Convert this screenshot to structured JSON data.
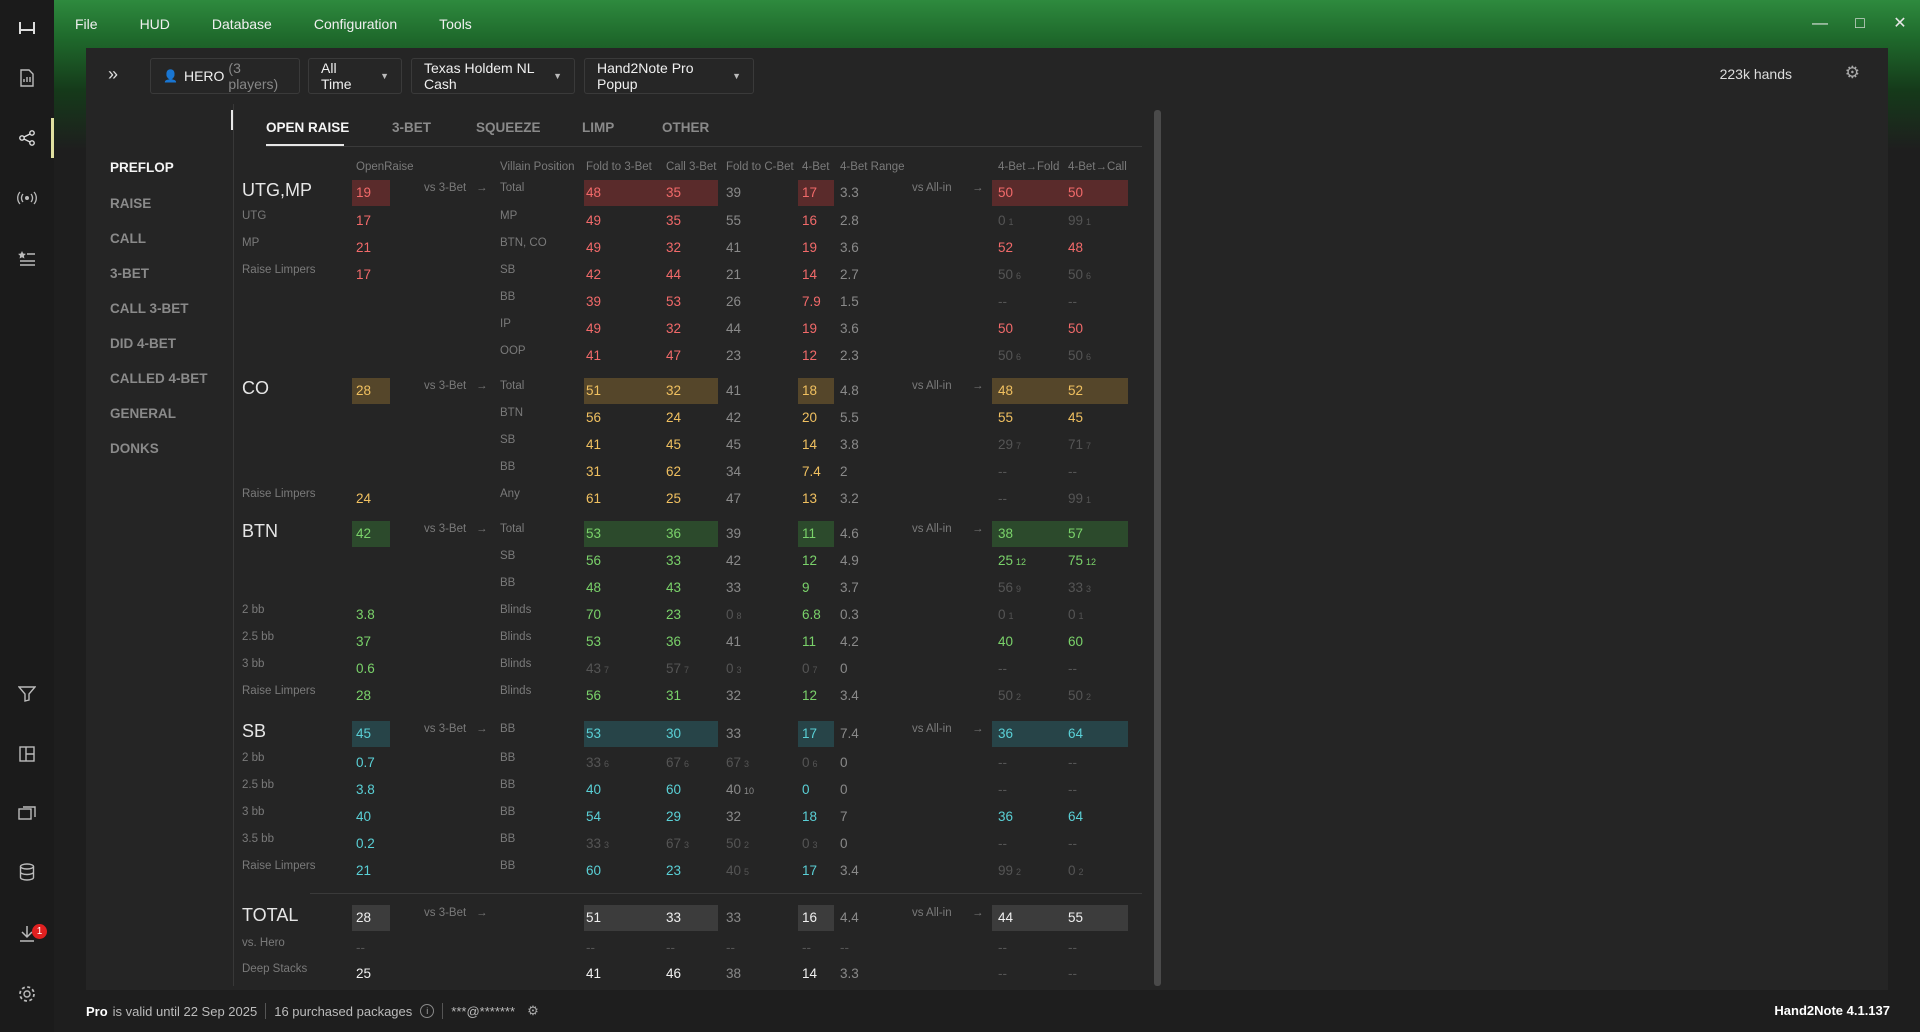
{
  "menu": [
    "File",
    "HUD",
    "Database",
    "Configuration",
    "Tools"
  ],
  "toolbar": {
    "player": "HERO",
    "player_count": "(3 players)",
    "time": "All Time",
    "game": "Texas Holdem NL Cash",
    "hud": "Hand2Note Pro Popup",
    "hands": "223k hands"
  },
  "sidenav": [
    "PREFLOP",
    "RAISE",
    "CALL",
    "3-BET",
    "CALL 3-BET",
    "DID 4-BET",
    "CALLED 4-BET",
    "GENERAL",
    "DONKS"
  ],
  "tabs": [
    "OPEN RAISE",
    "3-BET",
    "SQUEEZE",
    "LIMP",
    "OTHER"
  ],
  "headers": {
    "openraise": "OpenRaise",
    "villain": "Villain Position",
    "f3b": "Fold to 3-Bet",
    "c3b": "Call 3-Bet",
    "fcb": "Fold to C-Bet",
    "b4": "4-Bet",
    "b4r": "4-Bet Range",
    "f4f": "4-Bet→Fold",
    "f4c": "4-Bet→Call"
  },
  "rows": [
    {
      "group": "UTG,MP",
      "color": "red",
      "or": "19",
      "vs3": "vs 3-Bet",
      "arrow": "→",
      "pos": "Total",
      "f3b": "48",
      "c3b": "35",
      "fcb": "39",
      "b4": "17",
      "b4r": "3.3",
      "vsai": "vs All-in",
      "arrow2": "→",
      "ff": "50",
      "fc": "50",
      "hl": true
    },
    {
      "label": "UTG",
      "color": "red",
      "or": "17",
      "pos": "MP",
      "f3b": "49",
      "c3b": "35",
      "fcb": "55",
      "b4": "16",
      "b4r": "2.8",
      "ff": "0",
      "ff_sub": "1",
      "ff_dim": true,
      "fc": "99",
      "fc_sub": "1",
      "fc_dim": true
    },
    {
      "label": "MP",
      "color": "red",
      "or": "21",
      "pos": "BTN, CO",
      "f3b": "49",
      "c3b": "32",
      "fcb": "41",
      "b4": "19",
      "b4r": "3.6",
      "ff": "52",
      "fc": "48"
    },
    {
      "label": "Raise Limpers",
      "color": "red",
      "or": "17",
      "pos": "SB",
      "f3b": "42",
      "c3b": "44",
      "fcb": "21",
      "b4": "14",
      "b4r": "2.7",
      "ff": "50",
      "ff_sub": "6",
      "ff_dim": true,
      "fc": "50",
      "fc_sub": "6",
      "fc_dim": true
    },
    {
      "color": "red",
      "pos": "BB",
      "f3b": "39",
      "c3b": "53",
      "fcb": "26",
      "b4": "7.9",
      "b4r": "1.5",
      "ff": "--",
      "ff_dim": true,
      "fc": "--",
      "fc_dim": true
    },
    {
      "color": "red",
      "pos": "IP",
      "f3b": "49",
      "c3b": "32",
      "fcb": "44",
      "b4": "19",
      "b4r": "3.6",
      "ff": "50",
      "fc": "50"
    },
    {
      "color": "red",
      "pos": "OOP",
      "f3b": "41",
      "c3b": "47",
      "fcb": "23",
      "b4": "12",
      "b4r": "2.3",
      "ff": "50",
      "ff_sub": "6",
      "ff_dim": true,
      "fc": "50",
      "fc_sub": "6",
      "fc_dim": true
    },
    {
      "group": "CO",
      "color": "yel",
      "or": "28",
      "vs3": "vs 3-Bet",
      "arrow": "→",
      "pos": "Total",
      "f3b": "51",
      "c3b": "32",
      "fcb": "41",
      "b4": "18",
      "b4r": "4.8",
      "vsai": "vs All-in",
      "arrow2": "→",
      "ff": "48",
      "fc": "52",
      "hl": true
    },
    {
      "color": "yel",
      "pos": "BTN",
      "f3b": "56",
      "c3b": "24",
      "fcb": "42",
      "b4": "20",
      "b4r": "5.5",
      "ff": "55",
      "fc": "45"
    },
    {
      "color": "yel",
      "pos": "SB",
      "f3b": "41",
      "c3b": "45",
      "fcb": "45",
      "b4": "14",
      "b4r": "3.8",
      "ff": "29",
      "ff_sub": "7",
      "ff_dim": true,
      "fc": "71",
      "fc_sub": "7",
      "fc_dim": true
    },
    {
      "color": "yel",
      "pos": "BB",
      "f3b": "31",
      "c3b": "62",
      "fcb": "34",
      "b4": "7.4",
      "b4r": "2",
      "ff": "--",
      "ff_dim": true,
      "fc": "--",
      "fc_dim": true
    },
    {
      "label": "Raise Limpers",
      "color": "yel",
      "or": "24",
      "pos": "Any",
      "f3b": "61",
      "c3b": "25",
      "fcb": "47",
      "b4": "13",
      "b4r": "3.2",
      "ff": "--",
      "ff_dim": true,
      "fc": "99",
      "fc_sub": "1",
      "fc_dim": true
    },
    {
      "group": "BTN",
      "color": "grn",
      "or": "42",
      "vs3": "vs 3-Bet",
      "arrow": "→",
      "pos": "Total",
      "f3b": "53",
      "c3b": "36",
      "fcb": "39",
      "b4": "11",
      "b4r": "4.6",
      "vsai": "vs All-in",
      "arrow2": "→",
      "ff": "38",
      "fc": "57",
      "hl": true
    },
    {
      "color": "grn",
      "pos": "SB",
      "f3b": "56",
      "c3b": "33",
      "fcb": "42",
      "b4": "12",
      "b4r": "4.9",
      "ff": "25",
      "ff_sub": "12",
      "fc": "75",
      "fc_sub": "12"
    },
    {
      "color": "grn",
      "pos": "BB",
      "f3b": "48",
      "c3b": "43",
      "fcb": "33",
      "b4": "9",
      "b4r": "3.7",
      "ff": "56",
      "ff_sub": "9",
      "ff_dim": true,
      "fc": "33",
      "fc_sub": "3",
      "fc_dim": true
    },
    {
      "label": "2 bb",
      "color": "grn",
      "or": "3.8",
      "pos": "Blinds",
      "f3b": "70",
      "c3b": "23",
      "fcb": "0",
      "fcb_sub": "8",
      "fcb_dim": true,
      "b4": "6.8",
      "b4r": "0.3",
      "ff": "0",
      "ff_sub": "1",
      "ff_dim": true,
      "fc": "0",
      "fc_sub": "1",
      "fc_dim": true
    },
    {
      "label": "2.5 bb",
      "color": "grn",
      "or": "37",
      "pos": "Blinds",
      "f3b": "53",
      "c3b": "36",
      "fcb": "41",
      "b4": "11",
      "b4r": "4.2",
      "ff": "40",
      "fc": "60"
    },
    {
      "label": "3 bb",
      "color": "grn",
      "or": "0.6",
      "pos": "Blinds",
      "f3b": "43",
      "f3b_sub": "7",
      "f3b_dim": true,
      "c3b": "57",
      "c3b_sub": "7",
      "c3b_dim": true,
      "fcb": "0",
      "fcb_sub": "3",
      "fcb_dim": true,
      "b4": "0",
      "b4_sub": "7",
      "b4_dim": true,
      "b4r": "0",
      "ff": "--",
      "ff_dim": true,
      "fc": "--",
      "fc_dim": true
    },
    {
      "label": "Raise Limpers",
      "color": "grn",
      "or": "28",
      "pos": "Blinds",
      "f3b": "56",
      "c3b": "31",
      "fcb": "32",
      "b4": "12",
      "b4r": "3.4",
      "ff": "50",
      "ff_sub": "2",
      "ff_dim": true,
      "fc": "50",
      "fc_sub": "2",
      "fc_dim": true
    },
    {
      "group": "SB",
      "color": "cya",
      "or": "45",
      "vs3": "vs 3-Bet",
      "arrow": "→",
      "pos": "BB",
      "f3b": "53",
      "c3b": "30",
      "fcb": "33",
      "b4": "17",
      "b4r": "7.4",
      "vsai": "vs All-in",
      "arrow2": "→",
      "ff": "36",
      "fc": "64",
      "hl": true
    },
    {
      "label": "2 bb",
      "color": "cya",
      "or": "0.7",
      "pos": "BB",
      "f3b": "33",
      "f3b_sub": "6",
      "f3b_dim": true,
      "c3b": "67",
      "c3b_sub": "6",
      "c3b_dim": true,
      "fcb": "67",
      "fcb_sub": "3",
      "fcb_dim": true,
      "b4": "0",
      "b4_sub": "6",
      "b4_dim": true,
      "b4r": "0",
      "ff": "--",
      "ff_dim": true,
      "fc": "--",
      "fc_dim": true
    },
    {
      "label": "2.5 bb",
      "color": "cya",
      "or": "3.8",
      "pos": "BB",
      "f3b": "40",
      "c3b": "60",
      "fcb": "40",
      "fcb_sub": "10",
      "b4": "0",
      "b4r": "0",
      "ff": "--",
      "ff_dim": true,
      "fc": "--",
      "fc_dim": true
    },
    {
      "label": "3 bb",
      "color": "cya",
      "or": "40",
      "pos": "BB",
      "f3b": "54",
      "c3b": "29",
      "fcb": "32",
      "b4": "18",
      "b4r": "7",
      "ff": "36",
      "fc": "64"
    },
    {
      "label": "3.5 bb",
      "color": "cya",
      "or": "0.2",
      "pos": "BB",
      "f3b": "33",
      "f3b_sub": "3",
      "f3b_dim": true,
      "c3b": "67",
      "c3b_sub": "3",
      "c3b_dim": true,
      "fcb": "50",
      "fcb_sub": "2",
      "fcb_dim": true,
      "b4": "0",
      "b4_sub": "3",
      "b4_dim": true,
      "b4r": "0",
      "ff": "--",
      "ff_dim": true,
      "fc": "--",
      "fc_dim": true
    },
    {
      "label": "Raise Limpers",
      "color": "cya",
      "or": "21",
      "pos": "BB",
      "f3b": "60",
      "c3b": "23",
      "fcb": "40",
      "fcb_sub": "5",
      "fcb_dim": true,
      "b4": "17",
      "b4r": "3.4",
      "ff": "99",
      "ff_sub": "2",
      "ff_dim": true,
      "fc": "0",
      "fc_sub": "2",
      "fc_dim": true
    },
    {
      "group": "TOTAL",
      "color": "wht",
      "or": "28",
      "vs3": "vs 3-Bet",
      "arrow": "→",
      "f3b": "51",
      "c3b": "33",
      "fcb": "33",
      "b4": "16",
      "b4r": "4.4",
      "vsai": "vs All-in",
      "arrow2": "→",
      "ff": "44",
      "fc": "55",
      "hl": true
    },
    {
      "label": "vs. Hero",
      "color": "wht",
      "or": "--",
      "or_dim": true,
      "f3b": "--",
      "f3b_dim": true,
      "c3b": "--",
      "c3b_dim": true,
      "fcb": "--",
      "fcb_dim": true,
      "b4": "--",
      "b4_dim": true,
      "b4r": "--",
      "b4r_dim": true,
      "ff": "--",
      "ff_dim": true,
      "fc": "--",
      "fc_dim": true
    },
    {
      "label": "Deep Stacks",
      "color": "wht",
      "or": "25",
      "f3b": "41",
      "c3b": "46",
      "fcb": "38",
      "b4": "14",
      "b4r": "3.3",
      "ff": "--",
      "ff_dim": true,
      "fc": "--",
      "fc_dim": true
    }
  ],
  "hl_colors": {
    "red": "#5a2b2b",
    "yel": "#55462a",
    "grn": "#2c4a2c",
    "cya": "#274448",
    "wht": "#3c3c3c"
  },
  "status": {
    "pro": "Pro",
    "valid": "is valid until 22 Sep 2025",
    "packages": "16 purchased packages",
    "email": "***@*******",
    "version": "Hand2Note 4.1.137"
  },
  "badge": "1"
}
